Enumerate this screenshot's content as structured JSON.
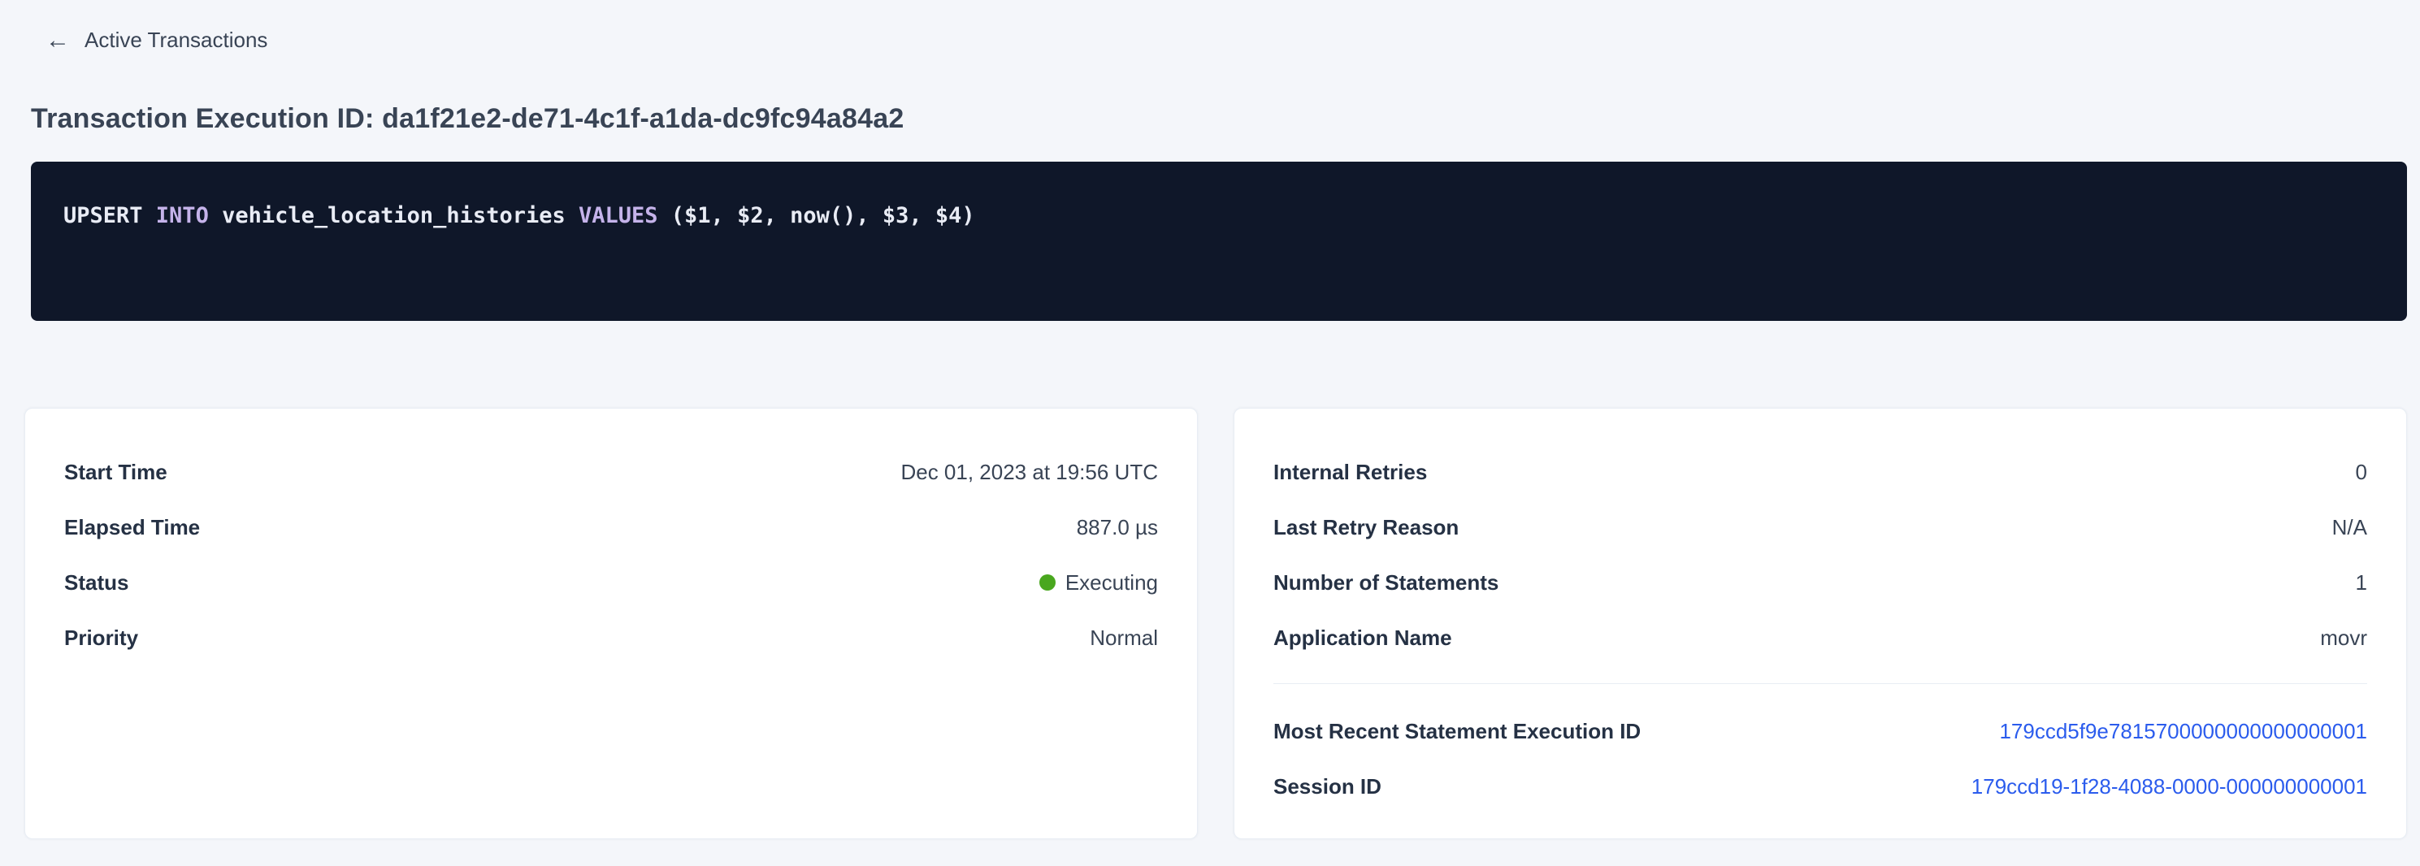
{
  "colors": {
    "page_bg": "#f4f6fa",
    "card_border": "#e8edf4",
    "link_blue": "#2b5ced",
    "status_green": "#49a71e",
    "code_bg": "#0f1729",
    "code_text": "#e9ecf5",
    "code_keyword": "#c5b3ea"
  },
  "header": {
    "back_icon": "arrow-left-icon",
    "back_arrow_glyph": "←",
    "back_label": "Active Transactions",
    "title": "Transaction Execution ID: da1f21e2-de71-4c1f-a1da-dc9fc94a84a2"
  },
  "sql": {
    "tokens": [
      {
        "text": "UPSERT ",
        "kind": "plain"
      },
      {
        "text": "INTO",
        "kind": "keyword"
      },
      {
        "text": " vehicle_location_histories ",
        "kind": "plain"
      },
      {
        "text": "VALUES",
        "kind": "keyword"
      },
      {
        "text": " ($1, $2, now(), $3, $4)",
        "kind": "plain"
      }
    ]
  },
  "summary_card": {
    "rows": [
      {
        "label": "Start Time",
        "value": "Dec 01, 2023 at 19:56 UTC"
      },
      {
        "label": "Elapsed Time",
        "value": "887.0 µs"
      },
      {
        "label": "Status",
        "value": "Executing",
        "status_color": "#49a71e"
      },
      {
        "label": "Priority",
        "value": "Normal"
      }
    ]
  },
  "details_card": {
    "rows": [
      {
        "label": "Internal Retries",
        "value": "0"
      },
      {
        "label": "Last Retry Reason",
        "value": "N/A"
      },
      {
        "label": "Number of Statements",
        "value": "1"
      },
      {
        "label": "Application Name",
        "value": "movr"
      }
    ],
    "links": [
      {
        "label": "Most Recent Statement Execution ID",
        "value": "179ccd5f9e7815700000000000000001"
      },
      {
        "label": "Session ID",
        "value": "179ccd19-1f28-4088-0000-000000000001"
      }
    ]
  }
}
